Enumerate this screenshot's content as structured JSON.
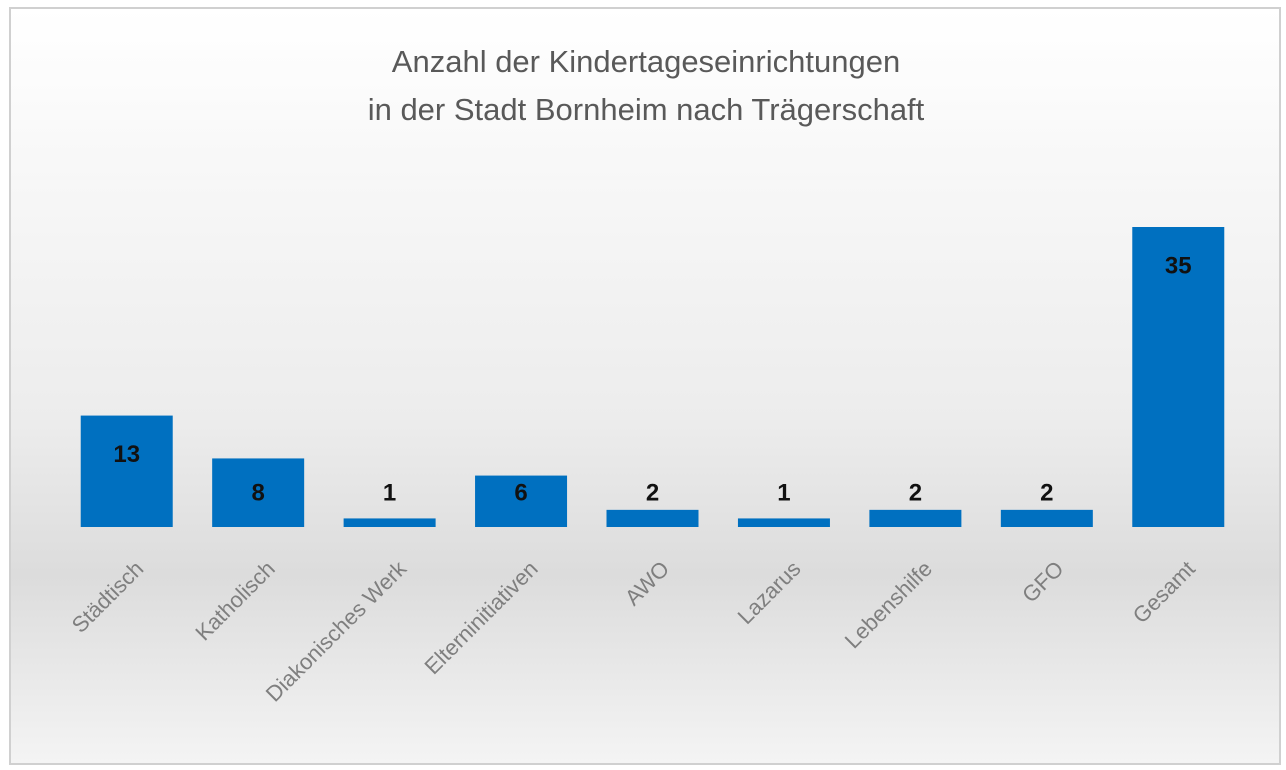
{
  "chart_data": {
    "type": "bar",
    "title": [
      "Anzahl der Kindertageseinrichtungen",
      "in der Stadt Bornheim nach Trägerschaft"
    ],
    "categories": [
      "Städtisch",
      "Katholisch",
      "Diakonisches Werk",
      "Elterninitiativen",
      "AWO",
      "Lazarus",
      "Lebenshilfe",
      "GFO",
      "Gesamt"
    ],
    "values": [
      13,
      8,
      1,
      6,
      2,
      1,
      2,
      2,
      35
    ],
    "color": "#0070c0",
    "ylim": [
      0,
      35
    ]
  }
}
